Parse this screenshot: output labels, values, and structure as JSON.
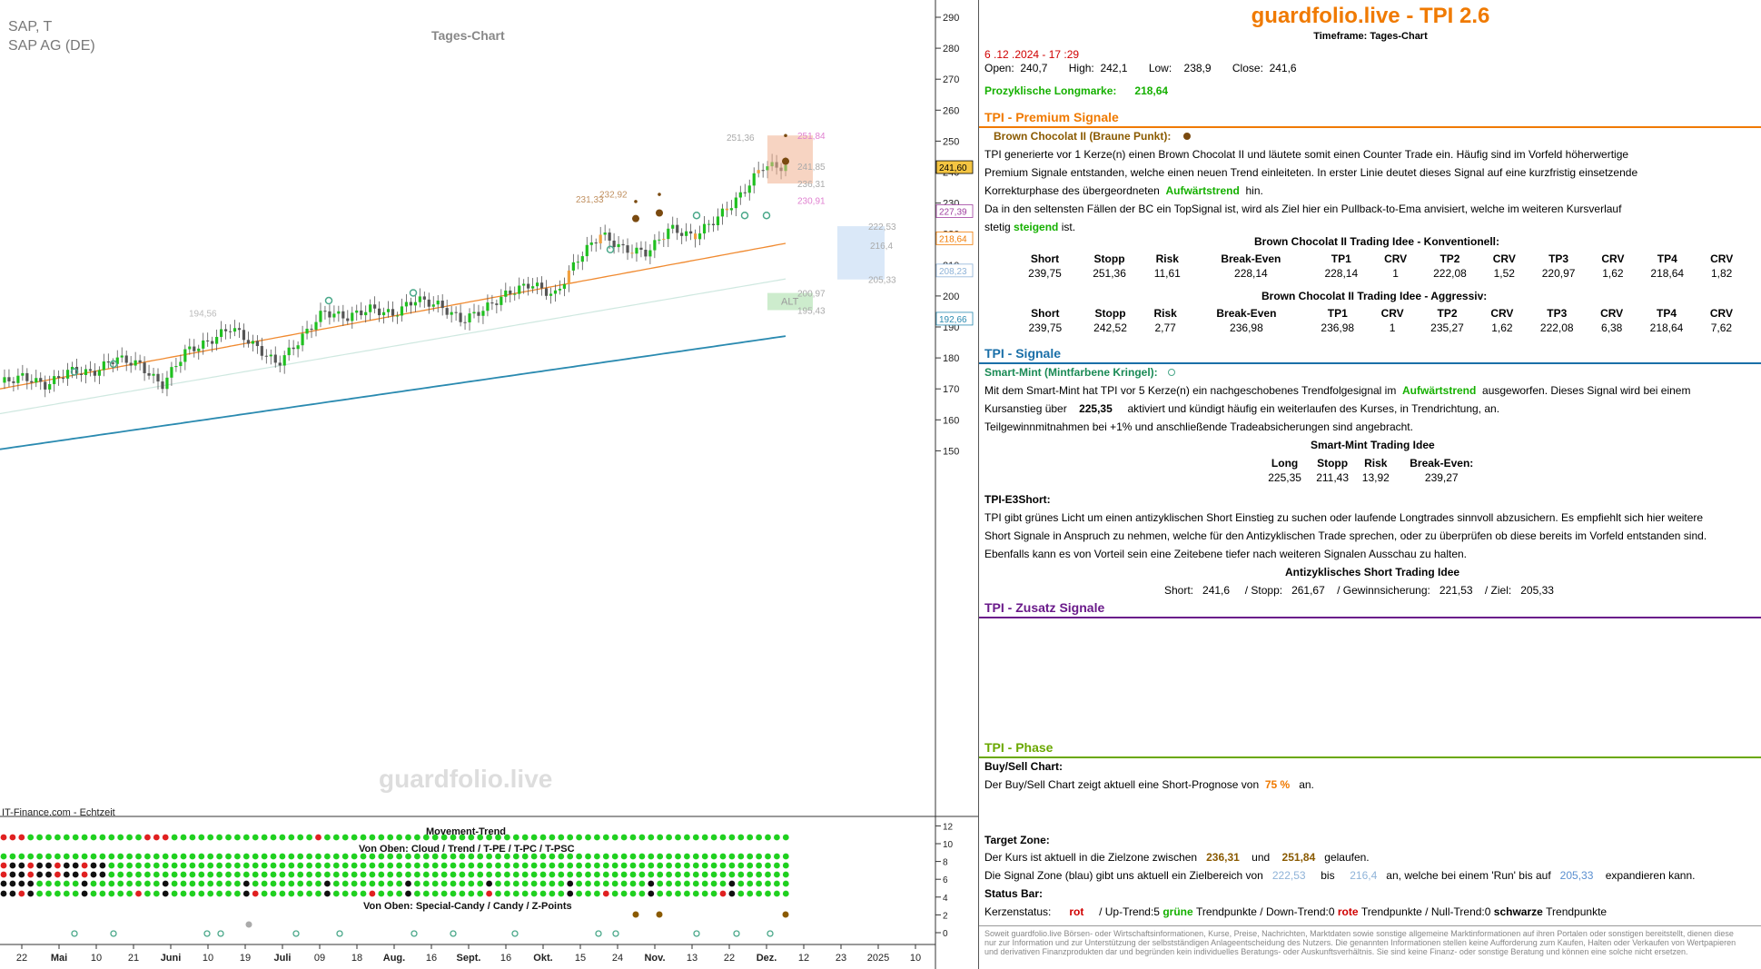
{
  "chart": {
    "symbol": "SAP, T",
    "name": "SAP AG (DE)",
    "title": "Tages-Chart",
    "watermark": "guardfolio.live",
    "source": "IT-Finance.com - Echtzeit",
    "y_ticks": [
      "290",
      "280",
      "270",
      "260",
      "250",
      "240",
      "230",
      "220",
      "210",
      "200",
      "190",
      "180",
      "170",
      "160",
      "150"
    ],
    "x_ticks": [
      "22",
      "Mai",
      "10",
      "21",
      "Juni",
      "10",
      "19",
      "Juli",
      "09",
      "18",
      "Aug.",
      "16",
      "Sept.",
      "16",
      "Okt.",
      "15",
      "24",
      "Nov.",
      "13",
      "22",
      "Dez.",
      "12",
      "23",
      "2025",
      "10"
    ],
    "price_badges": [
      "241,60",
      "227,39",
      "218,64",
      "208,23",
      "192,66"
    ],
    "levels": [
      "251,36",
      "251,84",
      "241,85",
      "236,31",
      "230,91",
      "232,92",
      "231,33",
      "222,53",
      "216,4",
      "205,33",
      "200,97",
      "195,43",
      "194,56"
    ],
    "alt_label": "ALT",
    "movement_title": "Movement-Trend",
    "movement_sub": "Von Oben: Cloud / Trend / T-PE / T-PC / T-PSC",
    "special_sub": "Von Oben: Special-Candy / Candy / Z-Points",
    "ind_ticks": [
      "12",
      "10",
      "8",
      "6",
      "4",
      "2",
      "0"
    ],
    "colors": {
      "up": "#20c020",
      "down": "#555555",
      "orange_candle": "#f0a040",
      "ema": "#f08a30",
      "trend_line": "#2a8ab0"
    }
  },
  "chart_data": {
    "type": "candlestick",
    "title": "Tages-Chart",
    "series": [
      {
        "name": "SAP AG (DE)",
        "approx_close_path": [
          172,
          174,
          171,
          176,
          175,
          180,
          178,
          171,
          182,
          185,
          190,
          184,
          178,
          186,
          195,
          193,
          196,
          194,
          199,
          197,
          192,
          196,
          201,
          204,
          200,
          212,
          220,
          215,
          214,
          222,
          219,
          225,
          232,
          242,
          241.6
        ]
      }
    ],
    "ylim": [
      145,
      292
    ],
    "last": {
      "open": 240.7,
      "high": 242.1,
      "low": 238.9,
      "close": 241.6
    }
  },
  "header": {
    "title": "guardfolio.live - TPI 2.6",
    "timeframe": "Timeframe: Tages-Chart"
  },
  "quote": {
    "datetime": "6 .12 .2024 - 17 :29",
    "open_l": "Open:",
    "open": "240,7",
    "high_l": "High:",
    "high": "242,1",
    "low_l": "Low:",
    "low": "238,9",
    "close_l": "Close:",
    "close": "241,6",
    "longmark_l": "Prozyklische Longmarke:",
    "longmark": "218,64"
  },
  "premium": {
    "title": "TPI - Premium Signale",
    "signal_name": "Brown Chocolat II (Braune Punkt):",
    "l1": "TPI generierte vor 1  Kerze(n) einen Brown Chocolat II und läutete somit einen Counter Trade ein. Häufig sind im Vorfeld höherwertige",
    "l2": "Premium Signale entstanden, welche einen neuen Trend einleiteten. In erster Linie deutet dieses Signal auf eine kurzfristig einsetzende",
    "l3a": "Korrekturphase des übergeordneten",
    "l3b": "Aufwärtstrend",
    "l3c": "hin.",
    "l4": "Da in den seltensten Fällen der BC ein TopSignal ist, wird als Ziel hier ein Pullback-to-Ema anvisiert, welche im weiteren Kursverlauf",
    "l5a": "stetig",
    "l5b": "steigend",
    "l5c": "ist.",
    "t1_title": "Brown Chocolat II Trading Idee - Konventionell:",
    "t2_title": "Brown Chocolat II Trading Idee - Aggressiv:",
    "headers": [
      "Short",
      "Stopp",
      "Risk",
      "Break-Even",
      "TP1",
      "CRV",
      "TP2",
      "CRV",
      "TP3",
      "CRV",
      "TP4",
      "CRV"
    ],
    "row1": [
      "239,75",
      "251,36",
      "11,61",
      "228,14",
      "228,14",
      "1",
      "222,08",
      "1,52",
      "220,97",
      "1,62",
      "218,64",
      "1,82"
    ],
    "row2": [
      "239,75",
      "242,52",
      "2,77",
      "236,98",
      "236,98",
      "1",
      "235,27",
      "1,62",
      "222,08",
      "6,38",
      "218,64",
      "7,62"
    ]
  },
  "signale": {
    "title": "TPI - Signale",
    "signal_name": "Smart-Mint (Mintfarbene Kringel):",
    "l1a": "Mit dem Smart-Mint hat TPI vor 5  Kerze(n) ein nachgeschobenes Trendfolgesignal im",
    "l1b": "Aufwärtstrend",
    "l1c": "ausgeworfen. Dieses Signal wird bei einem",
    "l2a": "Kursanstieg über",
    "l2b": "225,35",
    "l2c": "aktiviert und kündigt häufig ein weiterlaufen des Kurses, in Trendrichtung, an.",
    "l3": "Teilgewinnmitnahmen bei +1% und anschließende Tradeabsicherungen sind angebracht.",
    "idea_title": "Smart-Mint Trading Idee",
    "headers": [
      "Long",
      "Stopp",
      "Risk",
      "Break-Even:"
    ],
    "row": [
      "225,35",
      "211,43",
      "13,92",
      "239,27"
    ],
    "e3_title": "TPI-E3Short:",
    "e3_l1": "TPI gibt grünes Licht um einen antizyklischen Short Einstieg zu suchen oder laufende Longtrades sinnvoll abzusichern. Es empfiehlt sich hier weitere",
    "e3_l2": "Short Signale in Anspruch zu nehmen, welche für den Antizyklischen Trade sprechen, oder zu überprüfen ob diese bereits im Vorfeld entstanden sind.",
    "e3_l3": "Ebenfalls kann es von Vorteil sein eine Zeitebene tiefer nach weiteren Signalen Ausschau zu halten.",
    "anti_title": "Antizyklisches Short Trading Idee",
    "anti_line": "Short:   241,6     / Stopp:   261,67    / Gewinnsicherung:   221,53    / Ziel:   205,33"
  },
  "zusatz": {
    "title": "TPI - Zusatz Signale"
  },
  "phase": {
    "title": "TPI - Phase",
    "bs_title": "Buy/Sell Chart:",
    "bs_a": "Der Buy/Sell Chart zeigt aktuell eine Short-Prognose von",
    "bs_b": "75 %",
    "bs_c": "an.",
    "tz_title": "Target Zone:",
    "tz_a": "Der Kurs ist aktuell in die Zielzone zwischen",
    "tz_b": "236,31",
    "tz_c": "und",
    "tz_d": "251,84",
    "tz_e": "gelaufen.",
    "sz_a": "Die Signal Zone (blau) gibt uns aktuell ein Zielbereich von",
    "sz_b": "222,53",
    "sz_c": "bis",
    "sz_d": "216,4",
    "sz_e": "an, welche bei einem 'Run' bis auf",
    "sz_f": "205,33",
    "sz_g": "expandieren kann.",
    "sb_title": "Status Bar:",
    "sb_a": "Kerzenstatus:",
    "sb_b": "rot",
    "sb_c": "/ Up-Trend:5",
    "sb_d": "grüne",
    "sb_e": "Trendpunkte  / Down-Trend:0",
    "sb_f": "rote",
    "sb_g": "Trendpunkte / Null-Trend:0",
    "sb_h": "schwarze",
    "sb_i": "Trendpunkte"
  },
  "disclaimer": "Soweit guardfolio.live Börsen- oder Wirtschaftsinformationen, Kurse, Preise, Nachrichten, Marktdaten sowie sonstige allgemeine Marktinformationen auf ihren Portalen oder sonstigen bereitstellt, dienen diese nur zur Information und zur Unterstützung der selbstständigen Anlageentscheidung des Nutzers. Die genannten Informationen stellen keine Aufforderung zum Kaufen, Halten oder Verkaufen von Wertpapieren und derivativen Finanzprodukten dar und begründen kein individuelles Beratungs- oder Auskunftsverhältnis. Sie sind keine Finanz- oder sonstige Beratung und können eine solche nicht ersetzen."
}
